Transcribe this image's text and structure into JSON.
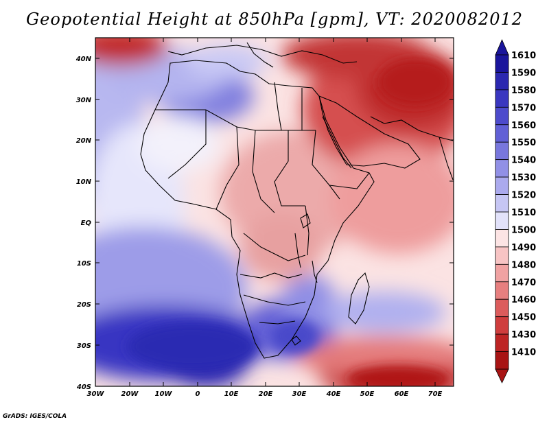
{
  "title": "Geopotential Height at 850hPa [gpm], VT: 2020082012",
  "credit": "GrADS: IGES/COLA",
  "map": {
    "region": "Africa and Middle East",
    "variable": "Geopotential Height at 850hPa",
    "units": "gpm",
    "valid_time": "2020082012",
    "lon_range": [
      -30,
      78
    ],
    "lat_range": [
      -40,
      45
    ]
  },
  "lon_ticks": [
    "30W",
    "20W",
    "10W",
    "0",
    "10E",
    "20E",
    "30E",
    "40E",
    "50E",
    "60E",
    "70E"
  ],
  "lat_ticks": [
    "40N",
    "30N",
    "20N",
    "10N",
    "EQ",
    "10S",
    "20S",
    "30S",
    "40S"
  ],
  "colorbar": {
    "labels": [
      "1610",
      "1590",
      "1580",
      "1570",
      "1560",
      "1550",
      "1540",
      "1530",
      "1520",
      "1510",
      "1500",
      "1490",
      "1480",
      "1470",
      "1460",
      "1450",
      "1430",
      "1410"
    ],
    "colors": [
      "#1a159c",
      "#2b28b0",
      "#3a37c0",
      "#4d4bcc",
      "#6160d6",
      "#7877dd",
      "#9190e6",
      "#abaaee",
      "#c6c6f4",
      "#e2e2fa",
      "#fce4e4",
      "#f7c4c4",
      "#f0a2a2",
      "#e77f7f",
      "#dc5c5c",
      "#cf3d3d",
      "#bd2424",
      "#a81414"
    ]
  }
}
